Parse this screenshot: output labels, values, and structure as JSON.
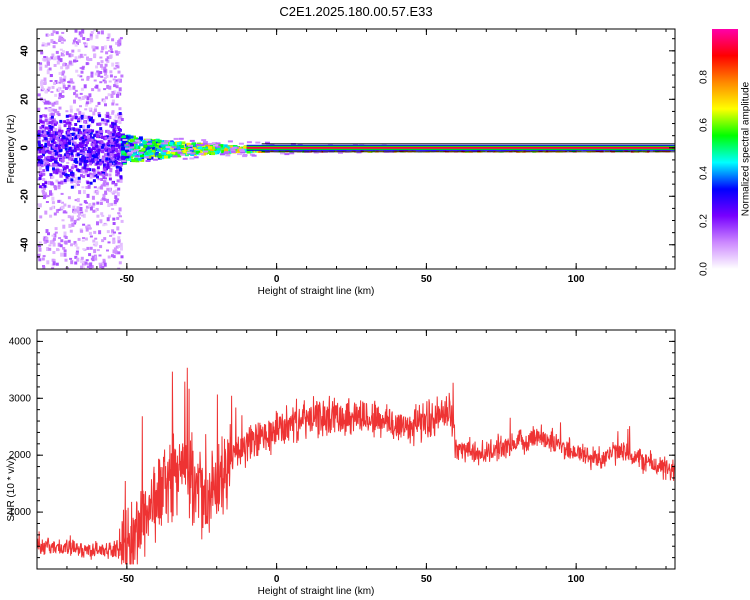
{
  "figure_title": "C2E1.2025.180.00.57.E33",
  "chart_data": [
    {
      "type": "heatmap",
      "name": "spectrogram",
      "xlabel": "Height of straight line (km)",
      "ylabel": "Frequency (Hz)",
      "xlim": [
        -80,
        133
      ],
      "ylim": [
        -50,
        49
      ],
      "xticks": [
        -50,
        0,
        50,
        100
      ],
      "xtick_labels": [
        "-50",
        "0",
        "50",
        "100"
      ],
      "yticks": [
        -40,
        -20,
        0,
        20,
        40
      ],
      "ytick_labels": [
        "-40",
        "-20",
        "0",
        "20",
        "40"
      ],
      "line_center_hz": 0,
      "scatter_region_km": [
        -80,
        -52
      ],
      "colorbar": {
        "label": "Normalized spectral amplitude",
        "range": [
          0,
          1
        ],
        "ticks": [
          0.0,
          0.2,
          0.4,
          0.6,
          0.8
        ],
        "tick_labels": [
          "0.0",
          "0.2",
          "0.4",
          "0.6",
          "0.8"
        ],
        "colormap": [
          "#ffffff",
          "#cc88ff",
          "#7700ff",
          "#0000ff",
          "#00ffff",
          "#00ff00",
          "#ffff00",
          "#ff8800",
          "#ff0000",
          "#ff00aa"
        ]
      }
    },
    {
      "type": "line",
      "name": "snr",
      "xlabel": "Height of straight line (km)",
      "ylabel": "SNR (10 * v/v)",
      "xlim": [
        -80,
        133
      ],
      "ylim": [
        0,
        4200
      ],
      "xticks": [
        -50,
        0,
        50,
        100
      ],
      "xtick_labels": [
        "-50",
        "0",
        "50",
        "100"
      ],
      "yticks": [
        1000,
        2000,
        3000,
        4000
      ],
      "ytick_labels": [
        "1000",
        "2000",
        "3000",
        "4000"
      ],
      "color": "#ee3333",
      "series": [
        {
          "x": [
            -80,
            -75,
            -70,
            -65,
            -60,
            -55,
            -50,
            -47,
            -45,
            -42,
            -40,
            -37,
            -35,
            -33,
            -30,
            -27,
            -25,
            -22,
            -20,
            -17,
            -15,
            -12,
            -10,
            -7,
            -5,
            -2,
            0,
            3,
            5,
            7,
            10,
            13,
            15,
            18,
            20,
            23,
            25,
            28,
            30,
            33,
            35,
            38,
            40,
            43,
            45,
            48,
            50,
            53,
            55,
            57,
            58,
            59,
            60,
            63,
            65,
            68,
            70,
            73,
            75,
            78,
            80,
            83,
            85,
            88,
            90,
            93,
            95,
            98,
            100,
            103,
            105,
            108,
            110,
            113,
            115,
            118,
            120,
            123,
            125,
            128,
            130,
            133
          ],
          "y": [
            420,
            390,
            360,
            340,
            330,
            340,
            380,
            600,
            900,
            1100,
            1250,
            1500,
            1650,
            1750,
            1700,
            1500,
            1300,
            1200,
            1450,
            1700,
            1950,
            2100,
            2150,
            2250,
            2300,
            2350,
            2450,
            2500,
            2550,
            2600,
            2620,
            2640,
            2660,
            2680,
            2700,
            2700,
            2690,
            2680,
            2660,
            2640,
            2600,
            2560,
            2520,
            2510,
            2540,
            2580,
            2620,
            2650,
            2700,
            2750,
            2780,
            2500,
            2150,
            2100,
            2050,
            2030,
            2050,
            2100,
            2150,
            2150,
            2200,
            2250,
            2300,
            2350,
            2300,
            2200,
            2150,
            2100,
            2050,
            2000,
            1950,
            1950,
            2000,
            2050,
            2050,
            2000,
            1950,
            1900,
            1850,
            1800,
            1750,
            1700
          ]
        }
      ]
    }
  ]
}
